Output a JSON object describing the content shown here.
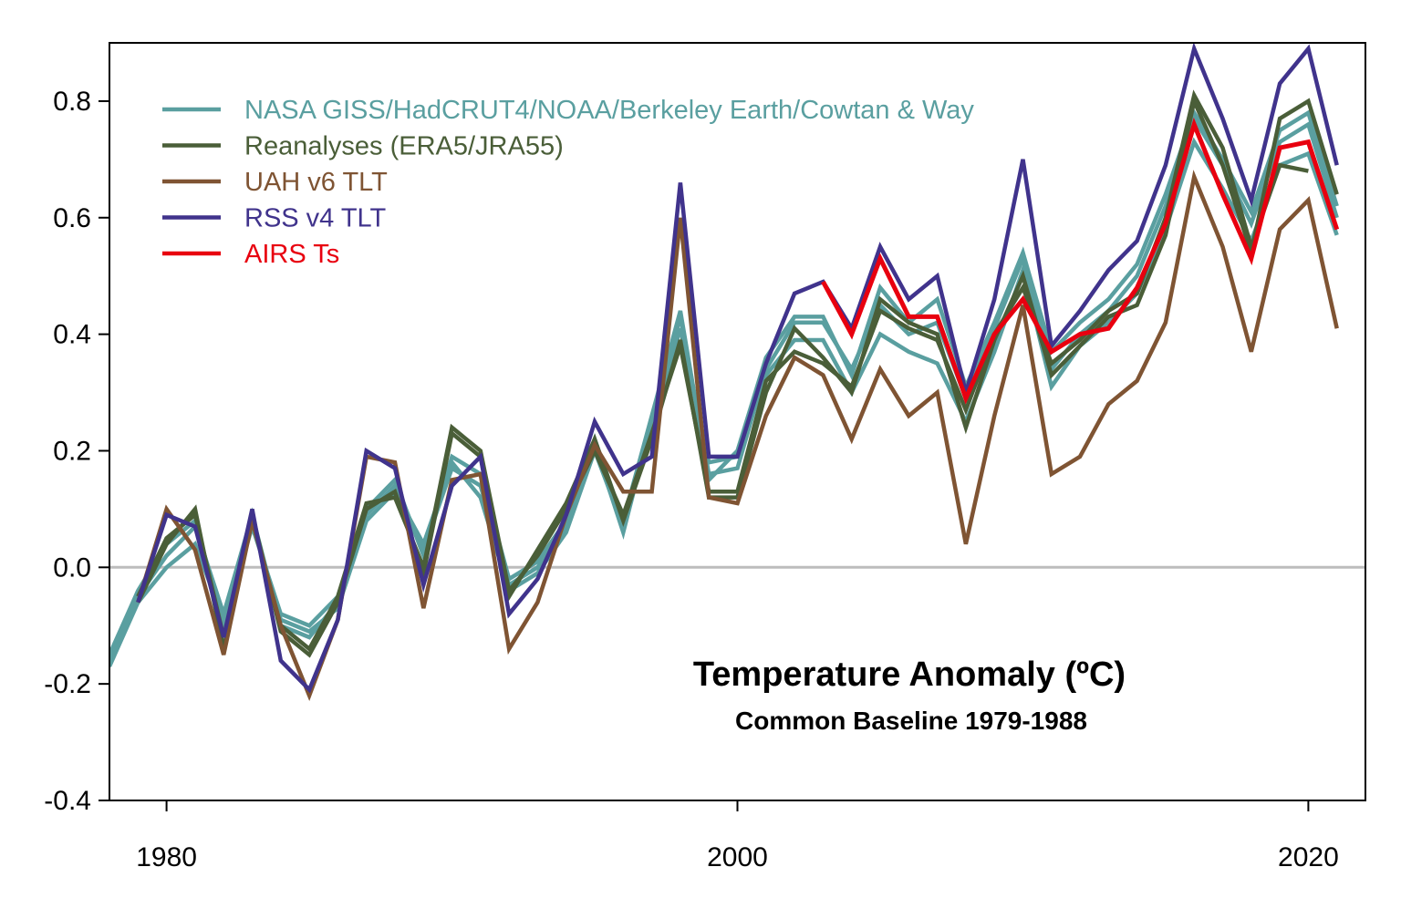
{
  "chart_data": {
    "type": "line",
    "title": "Temperature Anomaly (ºC)",
    "subtitle": "Common Baseline 1979-1988",
    "xlim": [
      1978,
      2022
    ],
    "ylim": [
      -0.4,
      0.9
    ],
    "xticks": [
      1980,
      2000,
      2020
    ],
    "yticks": [
      -0.4,
      -0.2,
      0.0,
      0.2,
      0.4,
      0.6,
      0.8
    ],
    "ytick_labels": [
      "-0.4",
      "-0.2",
      "0.0",
      "0.2",
      "0.4",
      "0.6",
      "0.8"
    ],
    "xtick_labels": [
      "1980",
      "2000",
      "2020"
    ],
    "zero_line": true,
    "legend_position": "top-left",
    "series": [
      {
        "name": "NASA GISS/HadCRUT4/NOAA/Berkeley Earth/Cowtan & Way",
        "color": "#5a9fa0",
        "lines": [
          {
            "x": [
              1978,
              1979,
              1980,
              1981,
              1982,
              1983,
              1984,
              1985,
              1986,
              1987,
              1988,
              1989,
              1990,
              1991,
              1992,
              1993,
              1994,
              1995,
              1996,
              1997,
              1998,
              1999,
              2000,
              2001,
              2002,
              2003,
              2004,
              2005,
              2006,
              2007,
              2008,
              2009,
              2010,
              2011,
              2012,
              2013,
              2014,
              2015,
              2016,
              2017,
              2018,
              2019,
              2020,
              2021
            ],
            "y": [
              -0.17,
              -0.06,
              0.0,
              0.04,
              -0.09,
              0.08,
              -0.09,
              -0.11,
              -0.07,
              0.08,
              0.13,
              0.04,
              0.18,
              0.12,
              -0.04,
              -0.01,
              0.06,
              0.2,
              0.07,
              0.24,
              0.41,
              0.18,
              0.19,
              0.33,
              0.39,
              0.39,
              0.3,
              0.4,
              0.37,
              0.35,
              0.25,
              0.37,
              0.51,
              0.31,
              0.38,
              0.42,
              0.47,
              0.58,
              0.73,
              0.65,
              0.56,
              0.69,
              0.71,
              0.57
            ]
          },
          {
            "x": [
              1978,
              1979,
              1980,
              1981,
              1982,
              1983,
              1984,
              1985,
              1986,
              1987,
              1988,
              1989,
              1990,
              1991,
              1992,
              1993,
              1994,
              1995,
              1996,
              1997,
              1998,
              1999,
              2000,
              2001,
              2002,
              2003,
              2004,
              2005,
              2006,
              2007,
              2008,
              2009,
              2010,
              2011,
              2012,
              2013,
              2014,
              2015,
              2016,
              2017,
              2018,
              2019,
              2020,
              2021
            ],
            "y": [
              -0.16,
              -0.05,
              0.02,
              0.07,
              -0.08,
              0.09,
              -0.1,
              -0.12,
              -0.06,
              0.09,
              0.14,
              0.03,
              0.17,
              0.14,
              -0.03,
              0.0,
              0.07,
              0.21,
              0.06,
              0.25,
              0.43,
              0.16,
              0.17,
              0.34,
              0.42,
              0.42,
              0.34,
              0.45,
              0.4,
              0.42,
              0.29,
              0.41,
              0.53,
              0.34,
              0.4,
              0.44,
              0.5,
              0.62,
              0.77,
              0.69,
              0.59,
              0.73,
              0.76,
              0.6
            ]
          },
          {
            "x": [
              1978,
              1979,
              1980,
              1981,
              1982,
              1983,
              1984,
              1985,
              1986,
              1987,
              1988,
              1989,
              1990,
              1991,
              1992,
              1993,
              1994,
              1995,
              1996,
              1997,
              1998,
              1999,
              2000,
              2001,
              2002,
              2003,
              2004,
              2005,
              2006,
              2007,
              2008,
              2009,
              2010,
              2011,
              2012,
              2013,
              2014,
              2015,
              2016,
              2017,
              2018,
              2019,
              2020,
              2021
            ],
            "y": [
              -0.15,
              -0.04,
              0.04,
              0.08,
              -0.1,
              0.07,
              -0.08,
              -0.1,
              -0.05,
              0.1,
              0.15,
              0.02,
              0.19,
              0.16,
              -0.02,
              0.01,
              0.08,
              0.22,
              0.08,
              0.26,
              0.44,
              0.15,
              0.2,
              0.36,
              0.43,
              0.43,
              0.33,
              0.48,
              0.42,
              0.46,
              0.31,
              0.42,
              0.54,
              0.37,
              0.42,
              0.46,
              0.52,
              0.64,
              0.78,
              0.7,
              0.61,
              0.75,
              0.78,
              0.62
            ]
          }
        ]
      },
      {
        "name": "Reanalyses (ERA5/JRA55)",
        "color": "#4a5e38",
        "lines": [
          {
            "x": [
              1979,
              1980,
              1981,
              1982,
              1983,
              1984,
              1985,
              1986,
              1987,
              1988,
              1989,
              1990,
              1991,
              1992,
              1993,
              1994,
              1995,
              1996,
              1997,
              1998,
              1999,
              2000,
              2001,
              2002,
              2003,
              2004,
              2005,
              2006,
              2007,
              2008,
              2009,
              2010,
              2011,
              2012,
              2013,
              2014,
              2015,
              2016,
              2017,
              2018,
              2019,
              2020,
              2021
            ],
            "y": [
              -0.06,
              0.04,
              0.1,
              -0.14,
              0.09,
              -0.11,
              -0.15,
              -0.06,
              0.1,
              0.13,
              -0.01,
              0.23,
              0.19,
              -0.05,
              0.03,
              0.11,
              0.22,
              0.08,
              0.22,
              0.39,
              0.12,
              0.12,
              0.3,
              0.41,
              0.36,
              0.3,
              0.46,
              0.42,
              0.4,
              0.24,
              0.39,
              0.5,
              0.33,
              0.38,
              0.43,
              0.45,
              0.57,
              0.8,
              0.69,
              0.54,
              0.77,
              0.8,
              0.64
            ]
          },
          {
            "x": [
              1979,
              1980,
              1981,
              1982,
              1983,
              1984,
              1985,
              1986,
              1987,
              1988,
              1989,
              1990,
              1991,
              1992,
              1993,
              1994,
              1995,
              1996,
              1997,
              1998,
              1999,
              2000,
              2001,
              2002,
              2003,
              2004,
              2005,
              2006,
              2007,
              2008,
              2009,
              2010,
              2011,
              2012,
              2013,
              2014,
              2015,
              2016,
              2017,
              2018,
              2019,
              2020
            ],
            "y": [
              -0.05,
              0.05,
              0.09,
              -0.12,
              0.08,
              -0.1,
              -0.14,
              -0.05,
              0.11,
              0.12,
              0.0,
              0.24,
              0.2,
              -0.04,
              0.02,
              0.1,
              0.2,
              0.09,
              0.23,
              0.38,
              0.13,
              0.13,
              0.32,
              0.37,
              0.35,
              0.31,
              0.44,
              0.41,
              0.39,
              0.27,
              0.4,
              0.48,
              0.35,
              0.39,
              0.44,
              0.47,
              0.6,
              0.81,
              0.72,
              0.55,
              0.69,
              0.68
            ]
          }
        ]
      },
      {
        "name": "UAH v6 TLT",
        "color": "#7f5433",
        "lines": [
          {
            "x": [
              1979,
              1980,
              1981,
              1982,
              1983,
              1984,
              1985,
              1986,
              1987,
              1988,
              1989,
              1990,
              1991,
              1992,
              1993,
              1994,
              1995,
              1996,
              1997,
              1998,
              1999,
              2000,
              2001,
              2002,
              2003,
              2004,
              2005,
              2006,
              2007,
              2008,
              2009,
              2010,
              2011,
              2012,
              2013,
              2014,
              2015,
              2016,
              2017,
              2018,
              2019,
              2020,
              2021
            ],
            "y": [
              -0.06,
              0.1,
              0.03,
              -0.15,
              0.08,
              -0.1,
              -0.22,
              -0.09,
              0.19,
              0.18,
              -0.07,
              0.15,
              0.16,
              -0.14,
              -0.06,
              0.09,
              0.21,
              0.13,
              0.13,
              0.6,
              0.12,
              0.11,
              0.26,
              0.36,
              0.33,
              0.22,
              0.34,
              0.26,
              0.3,
              0.04,
              0.26,
              0.45,
              0.16,
              0.19,
              0.28,
              0.32,
              0.42,
              0.67,
              0.55,
              0.37,
              0.58,
              0.63,
              0.41
            ]
          }
        ]
      },
      {
        "name": "RSS v4 TLT",
        "color": "#40338c",
        "lines": [
          {
            "x": [
              1979,
              1980,
              1981,
              1982,
              1983,
              1984,
              1985,
              1986,
              1987,
              1988,
              1989,
              1990,
              1991,
              1992,
              1993,
              1994,
              1995,
              1996,
              1997,
              1998,
              1999,
              2000,
              2001,
              2002,
              2003,
              2004,
              2005,
              2006,
              2007,
              2008,
              2009,
              2010,
              2011,
              2012,
              2013,
              2014,
              2015,
              2016,
              2017,
              2018,
              2019,
              2020,
              2021
            ],
            "y": [
              -0.06,
              0.09,
              0.07,
              -0.12,
              0.1,
              -0.16,
              -0.21,
              -0.09,
              0.2,
              0.17,
              -0.03,
              0.14,
              0.19,
              -0.08,
              -0.02,
              0.09,
              0.25,
              0.16,
              0.19,
              0.66,
              0.19,
              0.19,
              0.35,
              0.47,
              0.49,
              0.41,
              0.55,
              0.46,
              0.5,
              0.3,
              0.46,
              0.7,
              0.38,
              0.44,
              0.51,
              0.56,
              0.69,
              0.89,
              0.77,
              0.63,
              0.83,
              0.89,
              0.69
            ]
          }
        ]
      },
      {
        "name": "AIRS Ts",
        "color": "#e8000f",
        "lines": [
          {
            "x": [
              2003,
              2004,
              2005,
              2006,
              2007,
              2008,
              2009,
              2010,
              2011,
              2012,
              2013,
              2014,
              2015,
              2016,
              2017,
              2018,
              2019,
              2020,
              2021
            ],
            "y": [
              0.49,
              0.4,
              0.53,
              0.43,
              0.43,
              0.29,
              0.4,
              0.46,
              0.37,
              0.4,
              0.41,
              0.48,
              0.59,
              0.76,
              0.64,
              0.53,
              0.72,
              0.73,
              0.58
            ]
          }
        ]
      }
    ]
  }
}
